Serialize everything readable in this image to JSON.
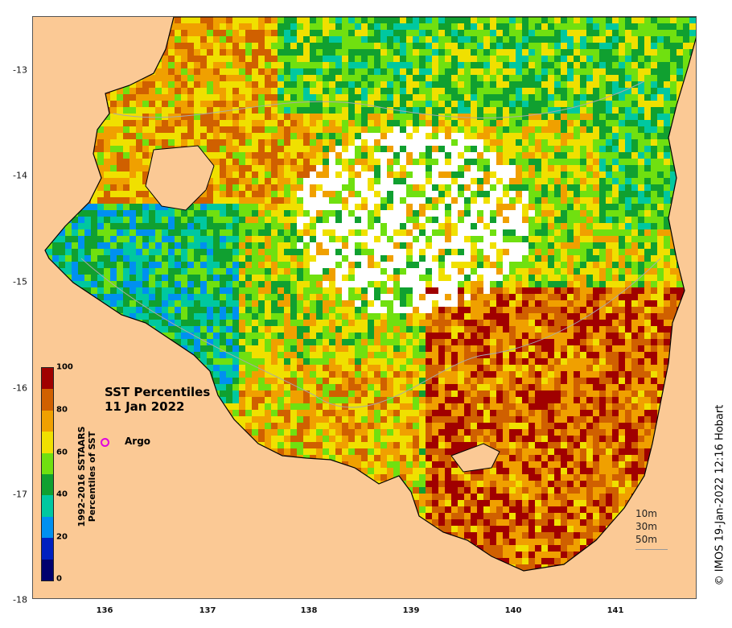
{
  "map": {
    "title_line1": "SST Percentiles",
    "title_line2": "11 Jan 2022",
    "x_ticks": [
      "136",
      "137",
      "138",
      "139",
      "140",
      "141"
    ],
    "y_ticks": [
      "-13",
      "-14",
      "-15",
      "-16",
      "-17",
      "-18"
    ],
    "land_color": "#fbc995",
    "coast_color": "#000000"
  },
  "colorbar": {
    "title_line1": "1992-2016 SSTAARS",
    "title_line2": "Percentiles of SST",
    "ticks": [
      "0",
      "20",
      "40",
      "60",
      "80",
      "100"
    ],
    "colors": [
      "#00006e",
      "#0020c0",
      "#0090f0",
      "#00c8a0",
      "#10a030",
      "#70e010",
      "#f0e000",
      "#f0a000",
      "#d06000",
      "#a00000"
    ]
  },
  "legend": {
    "argo_label": "Argo",
    "argo_color": "#e000e0",
    "depth_labels": [
      "10m",
      "30m",
      "50m"
    ]
  },
  "credit": "© IMOS 19-Jan-2022 12:16 Hobart"
}
